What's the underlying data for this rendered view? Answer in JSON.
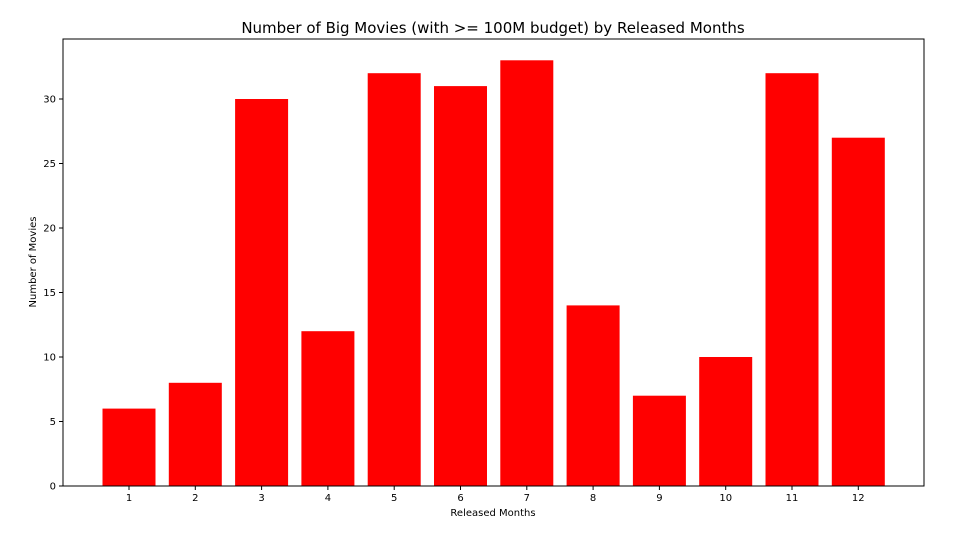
{
  "chart_data": {
    "type": "bar",
    "title": "Number of Big Movies (with >= 100M budget) by Released Months",
    "xlabel": "Released Months",
    "ylabel": "Number of Movies",
    "categories": [
      "1",
      "2",
      "3",
      "4",
      "5",
      "6",
      "7",
      "8",
      "9",
      "10",
      "11",
      "12"
    ],
    "values": [
      6,
      8,
      30,
      12,
      32,
      31,
      33,
      14,
      7,
      10,
      32,
      27
    ],
    "ylim": [
      0,
      34.65
    ],
    "yticks": [
      "0",
      "5",
      "10",
      "15",
      "20",
      "25",
      "30"
    ],
    "bar_color": "#ff0000",
    "grid": false,
    "legend": "none"
  }
}
